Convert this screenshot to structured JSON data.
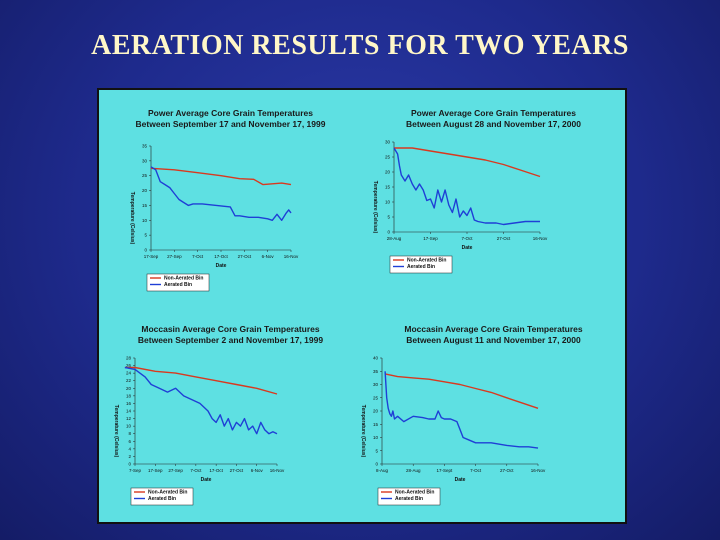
{
  "slide": {
    "title": "AERATION RESULTS FOR TWO YEARS"
  },
  "chart_data": [
    {
      "type": "line",
      "title": "Power Average Core Grain Temperatures",
      "subtitle": "Between September 17 and November 17, 1999",
      "xlabel": "Date",
      "ylabel": "Temperature (Celsius)",
      "ylim": [
        0,
        35
      ],
      "yticks": [
        0,
        5,
        10,
        15,
        20,
        25,
        30,
        35
      ],
      "xticks": [
        "17-Sep",
        "27-Sep",
        "7-Oct",
        "17-Oct",
        "27-Oct",
        "6-Nov",
        "16-Nov"
      ],
      "xlim": [
        0,
        60
      ],
      "xtick_pos": [
        0,
        10,
        20,
        30,
        40,
        50,
        60
      ],
      "legend_position": "bottom-left",
      "series": [
        {
          "name": "Non-Aerated Bin",
          "color": "#d9391f",
          "x": [
            0,
            10,
            20,
            30,
            38,
            44,
            48,
            56,
            60
          ],
          "y": [
            27.5,
            27,
            26,
            25,
            24,
            23.8,
            22,
            22.5,
            22
          ]
        },
        {
          "name": "Aerated Bin",
          "color": "#1f3fd6",
          "x": [
            0,
            2,
            4,
            6,
            8,
            10,
            12,
            14,
            16,
            18,
            22,
            28,
            34,
            36,
            38,
            42,
            46,
            50,
            52,
            54,
            56,
            58,
            59,
            60
          ],
          "y": [
            28,
            27,
            23,
            22,
            21,
            19,
            17,
            16,
            15,
            15.5,
            15.5,
            15,
            14.5,
            11.5,
            11.5,
            11,
            11,
            10.5,
            10,
            12,
            10,
            12.5,
            13.5,
            12.5
          ]
        }
      ]
    },
    {
      "type": "line",
      "title": "Power Average Core Grain Temperatures",
      "subtitle": "Between August 28 and November 17, 2000",
      "xlabel": "Date",
      "ylabel": "Temperature (Celsius)",
      "ylim": [
        0,
        30
      ],
      "yticks": [
        0,
        5,
        10,
        15,
        20,
        25,
        30
      ],
      "xticks": [
        "28-Aug",
        "17-Sep",
        "7-Oct",
        "27-Oct",
        "16-Nov"
      ],
      "xlim": [
        0,
        80
      ],
      "xtick_pos": [
        0,
        20,
        40,
        60,
        80
      ],
      "legend_position": "bottom-left",
      "series": [
        {
          "name": "Non-Aerated Bin",
          "color": "#d9391f",
          "x": [
            0,
            10,
            20,
            30,
            40,
            50,
            60,
            70,
            80
          ],
          "y": [
            28,
            28,
            27,
            26,
            25,
            24,
            22.5,
            20.5,
            18.5
          ]
        },
        {
          "name": "Aerated Bin",
          "color": "#1f3fd6",
          "x": [
            0,
            2,
            3,
            4,
            6,
            8,
            10,
            12,
            14,
            16,
            18,
            20,
            22,
            24,
            26,
            28,
            30,
            32,
            34,
            36,
            38,
            40,
            42,
            44,
            46,
            50,
            56,
            60,
            66,
            72,
            76,
            80
          ],
          "y": [
            28,
            26,
            22,
            19,
            17,
            19,
            16,
            14,
            16,
            14,
            10.5,
            11,
            8,
            14,
            10,
            14,
            9,
            6.5,
            11,
            5,
            7,
            5.5,
            8,
            4,
            3.5,
            3,
            3,
            2.5,
            3,
            3.5,
            3.5,
            3.5
          ]
        }
      ]
    },
    {
      "type": "line",
      "title": "Moccasin Average Core Grain Temperatures",
      "subtitle": "Between September 2 and November 17, 1999",
      "xlabel": "Date",
      "ylabel": "Temperature (Celsius)",
      "ylim": [
        0,
        28
      ],
      "yticks": [
        0,
        2,
        4,
        6,
        8,
        10,
        12,
        14,
        16,
        18,
        20,
        22,
        24,
        26,
        28
      ],
      "xticks": [
        "7-Sep",
        "17-Sep",
        "27-Sep",
        "7-Oct",
        "17-Oct",
        "27-Oct",
        "6-Nov",
        "16-Nov"
      ],
      "xlim": [
        0,
        70
      ],
      "xtick_pos": [
        0,
        10,
        20,
        30,
        40,
        50,
        60,
        70
      ],
      "legend_position": "bottom-left",
      "series": [
        {
          "name": "Non-Aerated Bin",
          "color": "#d9391f",
          "x": [
            -5,
            0,
            10,
            20,
            30,
            40,
            50,
            60,
            70
          ],
          "y": [
            25.5,
            25.5,
            24.5,
            24,
            23,
            22,
            21,
            20,
            18.5
          ]
        },
        {
          "name": "Aerated Bin",
          "color": "#1f3fd6",
          "x": [
            -5,
            0,
            5,
            8,
            12,
            16,
            20,
            24,
            28,
            32,
            36,
            38,
            40,
            42,
            44,
            46,
            48,
            50,
            52,
            54,
            56,
            58,
            60,
            62,
            64,
            66,
            68,
            70
          ],
          "y": [
            25.5,
            25,
            23,
            21,
            20,
            19,
            20,
            18,
            17,
            16,
            14,
            12,
            11,
            13,
            10,
            12,
            9,
            11,
            10,
            12,
            9,
            10,
            8,
            11,
            9,
            8,
            8.5,
            8
          ]
        }
      ]
    },
    {
      "type": "line",
      "title": "Moccasin Average Core Grain Temperatures",
      "subtitle": "Between August 11 and November 17, 2000",
      "xlabel": "Date",
      "ylabel": "Temperature (Celsius)",
      "ylim": [
        0,
        40
      ],
      "yticks": [
        0,
        5,
        10,
        15,
        20,
        25,
        30,
        35,
        40
      ],
      "xticks": [
        "8-Aug",
        "28-Aug",
        "17-Sept",
        "7-Oct",
        "27-Oct",
        "16-Nov"
      ],
      "xlim": [
        0,
        100
      ],
      "xtick_pos": [
        0,
        20,
        40,
        60,
        80,
        100
      ],
      "legend_position": "bottom-left",
      "series": [
        {
          "name": "Non-Aerated Bin",
          "color": "#d9391f",
          "x": [
            2,
            10,
            20,
            30,
            40,
            50,
            60,
            70,
            80,
            90,
            100
          ],
          "y": [
            34,
            33,
            32.5,
            32,
            31,
            30,
            28.5,
            27,
            25,
            23,
            21
          ]
        },
        {
          "name": "Aerated Bin",
          "color": "#1f3fd6",
          "x": [
            2,
            3,
            4,
            5,
            6,
            7,
            8,
            10,
            14,
            20,
            26,
            30,
            34,
            36,
            38,
            40,
            44,
            48,
            50,
            52,
            56,
            60,
            70,
            80,
            88,
            94,
            100
          ],
          "y": [
            35,
            25,
            21,
            19,
            18,
            20,
            17,
            18,
            16,
            18,
            17.5,
            17,
            17,
            20,
            17.5,
            17,
            17,
            16,
            13,
            10,
            9,
            8,
            8,
            7,
            6.5,
            6.5,
            6
          ]
        }
      ]
    }
  ]
}
